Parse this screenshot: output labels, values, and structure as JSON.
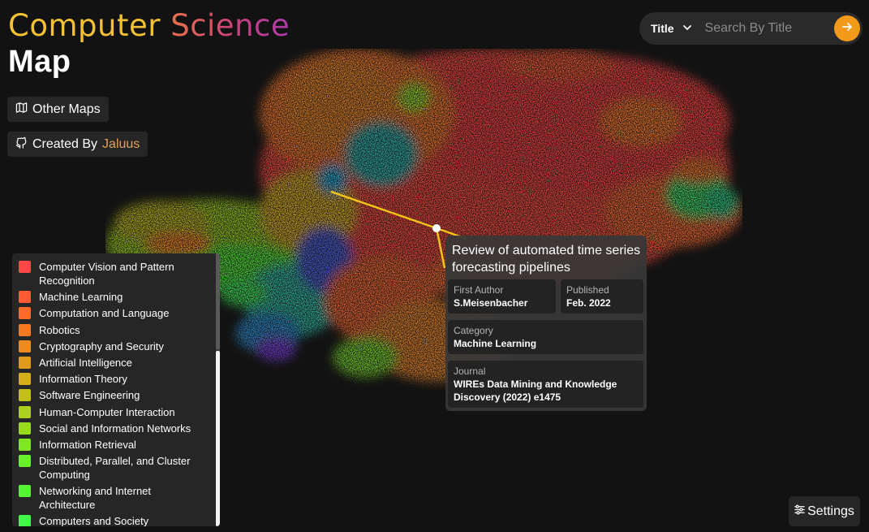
{
  "header": {
    "title_word1": "Computer",
    "title_word2": "Science",
    "title_word3": "Map"
  },
  "buttons": {
    "other_maps": "Other Maps",
    "created_by_prefix": "Created By",
    "created_by_name": "Jaluus"
  },
  "search": {
    "mode": "Title",
    "placeholder": "Search By Title"
  },
  "legend": [
    {
      "label": "Computer Vision and Pattern Recognition",
      "color": "#ff4848"
    },
    {
      "label": "Machine Learning",
      "color": "#ff5a34"
    },
    {
      "label": "Computation and Language",
      "color": "#fb6a2a"
    },
    {
      "label": "Robotics",
      "color": "#f37a22"
    },
    {
      "label": "Cryptography and Security",
      "color": "#ea8a20"
    },
    {
      "label": "Artificial Intelligence",
      "color": "#df9a1e"
    },
    {
      "label": "Information Theory",
      "color": "#d3ad1a"
    },
    {
      "label": "Software Engineering",
      "color": "#c3bf1a"
    },
    {
      "label": "Human-Computer Interaction",
      "color": "#add01c"
    },
    {
      "label": "Social and Information Networks",
      "color": "#98db1e"
    },
    {
      "label": "Information Retrieval",
      "color": "#80e624"
    },
    {
      "label": "Distributed, Parallel, and Cluster Computing",
      "color": "#6aef2c"
    },
    {
      "label": "Networking and Internet Architecture",
      "color": "#55f536"
    },
    {
      "label": "Computers and Society",
      "color": "#43f74a"
    }
  ],
  "popup": {
    "title": "Review of automated time series forecasting pipelines",
    "first_author_label": "First Author",
    "first_author": "S.Meisenbacher",
    "published_label": "Published",
    "published": "Feb. 2022",
    "category_label": "Category",
    "category": "Machine Learning",
    "journal_label": "Journal",
    "journal": "WIREs Data Mining and Knowledge Discovery (2022) e1475"
  },
  "settings_label": "Settings",
  "colors": {
    "accent": "#f39a1a",
    "panel": "#262626",
    "background": "#121212",
    "highlight_line": "#f5c518"
  }
}
